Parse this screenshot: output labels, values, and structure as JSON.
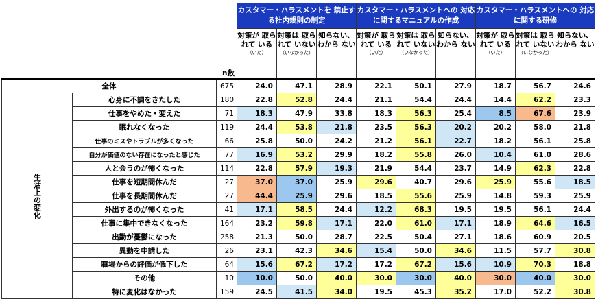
{
  "headers": {
    "n_label": "n数",
    "groups": [
      "カスタマー・ハラスメントを 禁止する社内規則の制定",
      "カスタマー・ハラスメントへの 対応に関するマニュアルの作成",
      "カスタマー・ハラスメントへの 対応に関する研修"
    ],
    "sub": [
      {
        "main": "対策が 取られて いる",
        "note": "（いた）"
      },
      {
        "main": "対策は 取られて いない",
        "note": "（いなかった）"
      },
      {
        "main": "知らない、 わから ない",
        "note": ""
      }
    ]
  },
  "side_label": "生活上の変化",
  "total": {
    "label": "全体",
    "n": "675",
    "values": [
      "24.0",
      "47.1",
      "28.9",
      "22.1",
      "50.1",
      "27.9",
      "18.7",
      "56.7",
      "24.6"
    ]
  },
  "rows": [
    {
      "label": "心身に不調をきたした",
      "n": "180",
      "values": [
        "22.8",
        "52.8",
        "24.4",
        "21.1",
        "54.4",
        "24.4",
        "14.4",
        "62.2",
        "23.3"
      ],
      "hl": [
        "",
        "y",
        "",
        "",
        "",
        "",
        "",
        "y",
        ""
      ]
    },
    {
      "label": "仕事をやめた・変えた",
      "n": "71",
      "values": [
        "18.3",
        "47.9",
        "33.8",
        "18.3",
        "56.3",
        "25.4",
        "8.5",
        "67.6",
        "23.9"
      ],
      "hl": [
        "lb",
        "",
        "",
        "",
        "y",
        "",
        "b",
        "o",
        ""
      ]
    },
    {
      "label": "眠れなくなった",
      "n": "119",
      "values": [
        "24.4",
        "53.8",
        "21.8",
        "23.5",
        "56.3",
        "20.2",
        "20.2",
        "58.0",
        "21.8"
      ],
      "hl": [
        "",
        "y",
        "lb",
        "",
        "y",
        "lb",
        "",
        "",
        ""
      ]
    },
    {
      "label": "仕事のミスやトラブルが多くなった",
      "n": "66",
      "values": [
        "25.8",
        "50.0",
        "24.2",
        "21.2",
        "56.1",
        "22.7",
        "18.2",
        "56.1",
        "25.8"
      ],
      "hl": [
        "",
        "",
        "",
        "",
        "y",
        "lb",
        "",
        "",
        ""
      ]
    },
    {
      "label": "自分が価値のない存在になったと感じた",
      "n": "77",
      "values": [
        "16.9",
        "53.2",
        "29.9",
        "18.2",
        "55.8",
        "26.0",
        "10.4",
        "61.0",
        "28.6"
      ],
      "hl": [
        "lb",
        "y",
        "",
        "",
        "y",
        "",
        "lb",
        "",
        ""
      ]
    },
    {
      "label": "人と会うのが怖くなった",
      "n": "114",
      "values": [
        "22.8",
        "57.9",
        "19.3",
        "21.9",
        "54.4",
        "23.7",
        "14.9",
        "62.3",
        "22.8"
      ],
      "hl": [
        "",
        "y",
        "lb",
        "",
        "",
        "",
        "",
        "y",
        ""
      ]
    },
    {
      "label": "仕事を短期間休んだ",
      "n": "27",
      "values": [
        "37.0",
        "37.0",
        "25.9",
        "29.6",
        "40.7",
        "29.6",
        "25.9",
        "55.6",
        "18.5"
      ],
      "hl": [
        "o",
        "b",
        "",
        "y",
        "",
        "",
        "y",
        "",
        "lb"
      ]
    },
    {
      "label": "仕事を長期間休んだ",
      "n": "27",
      "values": [
        "44.4",
        "25.9",
        "29.6",
        "18.5",
        "55.6",
        "25.9",
        "14.8",
        "59.3",
        "25.9"
      ],
      "hl": [
        "o",
        "b",
        "",
        "",
        "y",
        "",
        "",
        "",
        ""
      ]
    },
    {
      "label": "外出するのが怖くなった",
      "n": "41",
      "values": [
        "17.1",
        "58.5",
        "24.4",
        "12.2",
        "68.3",
        "19.5",
        "19.5",
        "56.1",
        "24.4"
      ],
      "hl": [
        "lb",
        "y",
        "",
        "lb",
        "y",
        "",
        "",
        "",
        ""
      ]
    },
    {
      "label": "仕事に集中できなくなった",
      "n": "164",
      "values": [
        "23.2",
        "59.8",
        "17.1",
        "22.0",
        "61.0",
        "17.1",
        "18.9",
        "64.6",
        "16.5"
      ],
      "hl": [
        "",
        "y",
        "lb",
        "",
        "y",
        "lb",
        "",
        "y",
        "lb"
      ]
    },
    {
      "label": "出勤が憂鬱になった",
      "n": "258",
      "values": [
        "21.3",
        "50.0",
        "28.7",
        "22.5",
        "50.4",
        "27.1",
        "18.6",
        "60.9",
        "20.5"
      ],
      "hl": [
        "",
        "",
        "",
        "",
        "",
        "",
        "",
        "",
        ""
      ]
    },
    {
      "label": "異動を申請した",
      "n": "26",
      "values": [
        "23.1",
        "42.3",
        "34.6",
        "15.4",
        "50.0",
        "34.6",
        "11.5",
        "57.7",
        "30.8"
      ],
      "hl": [
        "",
        "",
        "y",
        "lb",
        "",
        "y",
        "",
        "",
        "y"
      ]
    },
    {
      "label": "職場からの評価が低下した",
      "n": "64",
      "values": [
        "15.6",
        "67.2",
        "17.2",
        "17.2",
        "67.2",
        "15.6",
        "10.9",
        "70.3",
        "18.8"
      ],
      "hl": [
        "lb",
        "y",
        "lb",
        "",
        "y",
        "lb",
        "lb",
        "y",
        ""
      ]
    },
    {
      "label": "その他",
      "n": "10",
      "values": [
        "10.0",
        "50.0",
        "40.0",
        "30.0",
        "30.0",
        "40.0",
        "30.0",
        "40.0",
        "30.0"
      ],
      "hl": [
        "b",
        "",
        "y",
        "y",
        "b",
        "y",
        "o",
        "b",
        "y"
      ]
    },
    {
      "label": "特に変化はなかった",
      "n": "159",
      "values": [
        "24.5",
        "41.5",
        "34.0",
        "19.5",
        "45.3",
        "35.2",
        "17.0",
        "52.2",
        "30.8"
      ],
      "hl": [
        "",
        "lb",
        "y",
        "",
        "",
        "y",
        "",
        "",
        "y"
      ]
    }
  ]
}
